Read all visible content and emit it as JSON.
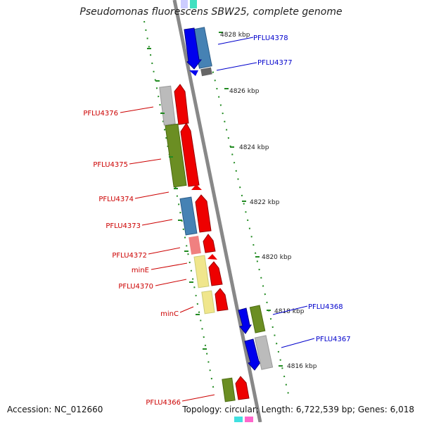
{
  "title": "Pseudomonas fluorescens SBW25, complete genome",
  "footer": {
    "accession": "Accession: NC_012660",
    "topology": "Topology: circular; Length: 6,722,539 bp; Genes: 6,018"
  },
  "ticks": [
    "4828 kbp",
    "4826 kbp",
    "4824 kbp",
    "4822 kbp",
    "4820 kbp",
    "4818 kbp",
    "4816 kbp"
  ],
  "labels": {
    "right": [
      "PFLU4378",
      "PFLU4377",
      "PFLU4368",
      "PFLU4367"
    ],
    "left": [
      "PFLU4376",
      "PFLU4375",
      "PFLU4374",
      "PFLU4373",
      "PFLU4372",
      "minE",
      "PFLU4370",
      "minC",
      "PFLU4366"
    ]
  },
  "colors": {
    "forward_strand": "#0000ee",
    "reverse_strand": "#ee0000",
    "label_forward": "#0000cc",
    "label_reverse": "#cc0000",
    "backbone": "#888888",
    "tick": "#228b22",
    "cog_green": "#6b8e23",
    "cog_steelblue": "#4682b4",
    "cog_gray": "#bbbbbb",
    "cog_yellow": "#f0e68c",
    "cog_pink": "#f08080",
    "cog_darkgray": "#666666"
  }
}
